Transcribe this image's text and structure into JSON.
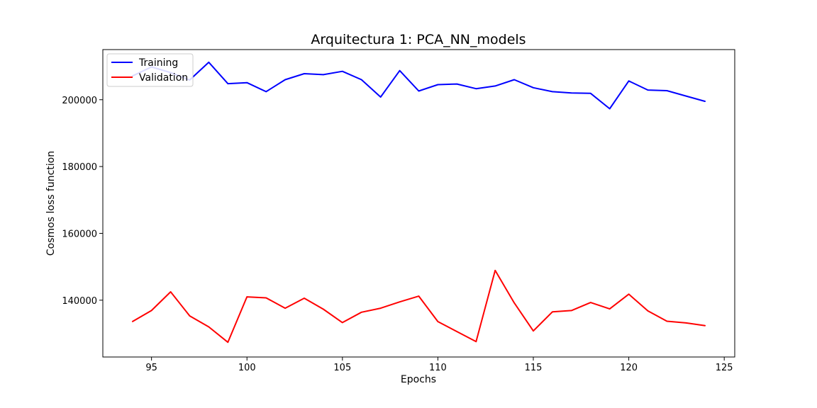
{
  "chart_data": {
    "type": "line",
    "title": "Arquitectura 1: PCA_NN_models",
    "xlabel": "Epochs",
    "ylabel": "Cosmos loss function",
    "xlim": [
      92.45,
      125.55
    ],
    "ylim": [
      123000,
      215000
    ],
    "xticks": [
      95,
      100,
      105,
      110,
      115,
      120,
      125
    ],
    "yticks": [
      140000,
      160000,
      180000,
      200000
    ],
    "grid": false,
    "legend_position": "top-left",
    "x": [
      94,
      95,
      96,
      97,
      98,
      99,
      100,
      101,
      102,
      103,
      104,
      105,
      106,
      107,
      108,
      109,
      110,
      111,
      112,
      113,
      114,
      115,
      116,
      117,
      118,
      119,
      120,
      121,
      122,
      123,
      124
    ],
    "series": [
      {
        "name": "Training",
        "color": "#0000ff",
        "values": [
          207100,
          209800,
          208100,
          205900,
          211200,
          204800,
          205100,
          202400,
          206000,
          207800,
          207500,
          208500,
          206000,
          200800,
          208700,
          202600,
          204500,
          204700,
          203300,
          204100,
          206000,
          203600,
          202400,
          202000,
          201900,
          197300,
          205600,
          202900,
          202700,
          201100,
          199500
        ]
      },
      {
        "name": "Validation",
        "color": "#ff0000",
        "values": [
          133600,
          136900,
          142500,
          135300,
          132000,
          127400,
          141000,
          140700,
          137600,
          140600,
          137300,
          133300,
          136400,
          137600,
          139500,
          141200,
          133600,
          130600,
          127600,
          148900,
          139200,
          130800,
          136500,
          136900,
          139300,
          137400,
          141800,
          136800,
          133700,
          133200,
          132400
        ]
      }
    ]
  }
}
